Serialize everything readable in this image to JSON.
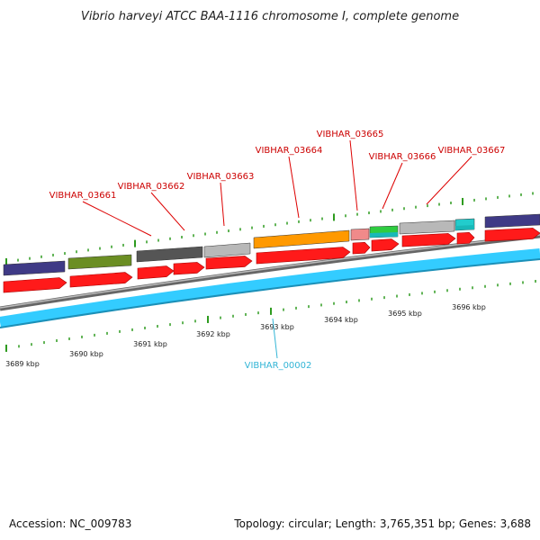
{
  "title": "Vibrio harveyi ATCC BAA-1116 chromosome I, complete genome",
  "accession": "Accession: NC_009783",
  "summary": "Topology: circular; Length: 3,765,351 bp; Genes: 3,688",
  "colors": {
    "gene_label": "#cc0000",
    "reference_label": "#33b5d6",
    "red_arrow": "#ff1a1a",
    "blue_track": "#33ccff",
    "gray_backbone": "#888888",
    "tick": "#2e9b1f"
  },
  "gene_labels": [
    {
      "text": "VIBHAR_03661"
    },
    {
      "text": "VIBHAR_03662"
    },
    {
      "text": "VIBHAR_03663"
    },
    {
      "text": "VIBHAR_03664"
    },
    {
      "text": "VIBHAR_03665"
    },
    {
      "text": "VIBHAR_03666"
    },
    {
      "text": "VIBHAR_03667"
    }
  ],
  "reference_label": "VIBHAR_00002",
  "kbp_labels": [
    "3689 kbp",
    "3690 kbp",
    "3691 kbp",
    "3692 kbp",
    "3693 kbp",
    "3694 kbp",
    "3695 kbp",
    "3696 kbp"
  ],
  "cog_features": [
    {
      "color": "#3f3a86"
    },
    {
      "color": "#6b8e23"
    },
    {
      "color": "#555555"
    },
    {
      "color": "#b8b8b8"
    },
    {
      "color": "#ff9900"
    },
    {
      "color": "#f08a8a"
    },
    {
      "color": "#2ecc40"
    },
    {
      "color": "#b8b8b8"
    },
    {
      "color": "#22cccc"
    },
    {
      "color": "#3f3a86"
    }
  ]
}
